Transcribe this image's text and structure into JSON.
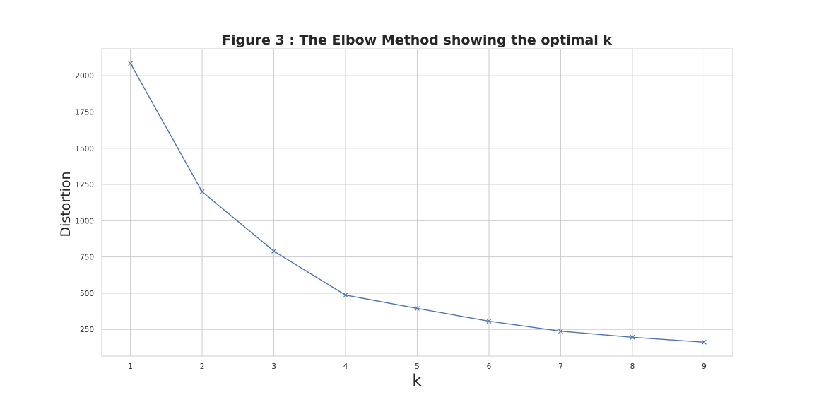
{
  "chart_data": {
    "type": "line",
    "title": "Figure 3 : The Elbow Method showing the optimal k",
    "xlabel": "k",
    "ylabel": "Distortion",
    "x": [
      1,
      2,
      3,
      4,
      5,
      6,
      7,
      8,
      9
    ],
    "series": [
      {
        "name": "distortion",
        "marker": "x",
        "values": [
          2085,
          1200,
          790,
          487,
          395,
          307,
          238,
          196,
          162
        ]
      }
    ],
    "x_ticks": [
      1,
      2,
      3,
      4,
      5,
      6,
      7,
      8,
      9
    ],
    "y_ticks": [
      250,
      500,
      750,
      1000,
      1250,
      1500,
      1750,
      2000
    ],
    "xlim": [
      0.6,
      9.4
    ],
    "ylim": [
      66,
      2186
    ],
    "grid": true,
    "line_color": "#4c72b0",
    "grid_color": "#cccccc"
  }
}
